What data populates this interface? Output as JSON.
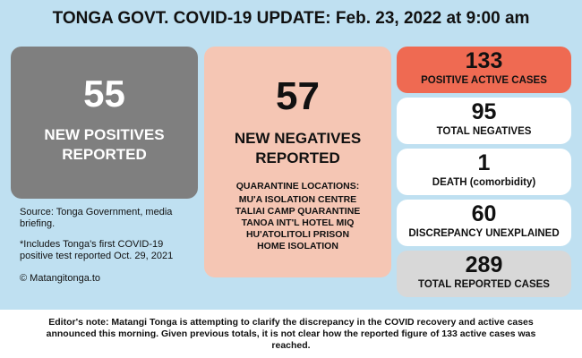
{
  "header": {
    "title": "TONGA GOVT. COVID-19 UPDATE: Feb. 23, 2022 at 9:00 am"
  },
  "new_positives": {
    "value": "55",
    "label_line1": "NEW POSITIVES",
    "label_line2": "REPORTED"
  },
  "new_negatives": {
    "value": "57",
    "label_line1": "NEW NEGATIVES",
    "label_line2": "REPORTED",
    "quarantine_title": "QUARANTINE LOCATIONS:",
    "locations": [
      "MU'A ISOLATION CENTRE",
      "TALIAI CAMP QUARANTINE",
      "TANOA INT'L HOTEL MIQ",
      "HU'ATOLITOLI PRISON",
      "HOME ISOLATION"
    ]
  },
  "notes": {
    "source": "Source: Tonga Government, media briefing.",
    "includes": "*Includes Tonga's first COVID-19 positive test reported Oct. 29, 2021",
    "copyright": "© Matangitonga.to"
  },
  "stats": [
    {
      "value": "133",
      "label": "POSITIVE ACTIVE CASES"
    },
    {
      "value": "95",
      "label": "TOTAL NEGATIVES"
    },
    {
      "value": "1",
      "label": "DEATH (comorbidity)"
    },
    {
      "value": "60",
      "label": "DISCREPANCY UNEXPLAINED"
    },
    {
      "value": "289",
      "label": "TOTAL REPORTED CASES"
    }
  ],
  "footer": {
    "note": "Editor's note: Matangi Tonga is attempting to clarify the discrepancy in the COVID recovery and active cases announced this morning. Given previous totals, it is not clear how the reported figure of 133 active cases was reached."
  },
  "colors": {
    "background": "#bfe0f1",
    "positives_card": "#7f7f7f",
    "negatives_card": "#f5c6b4",
    "active_card": "#ef6a52",
    "total_card": "#d8d8d8"
  }
}
